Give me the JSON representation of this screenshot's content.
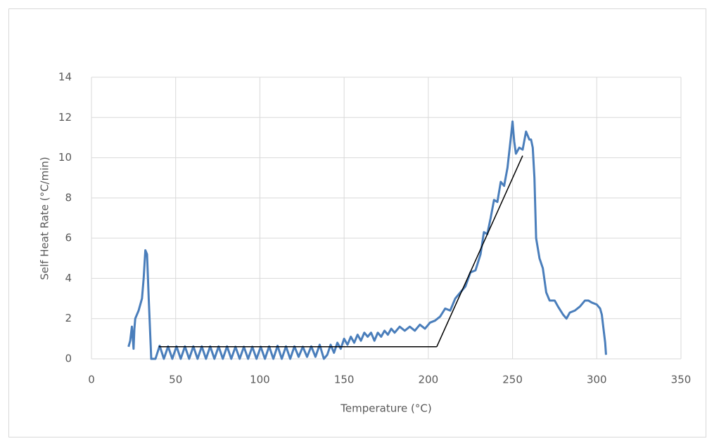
{
  "chart_data": {
    "type": "line",
    "x_label": "Temperature (°C)",
    "y_label": "Self Heat Rate (°C/min)",
    "xlim": [
      0,
      350
    ],
    "xticks": [
      0,
      50,
      100,
      150,
      200,
      250,
      300,
      350
    ],
    "ylim": [
      0,
      14
    ],
    "yticks": [
      0,
      2,
      4,
      6,
      8,
      10,
      12,
      14
    ],
    "grid": true,
    "series": [
      {
        "color": "#4a7ebb",
        "linewidth": 3,
        "x": [
          22,
          23,
          24,
          25,
          25.5,
          26,
          28,
          30,
          31,
          32,
          33,
          34,
          35,
          35.5,
          38,
          40.5,
          43,
          45.5,
          48,
          50.5,
          53,
          55.5,
          58,
          60.5,
          63,
          65.5,
          68,
          70.5,
          73,
          75.5,
          78,
          80.5,
          83,
          85.5,
          88,
          90.5,
          93,
          95.5,
          98,
          100.5,
          103,
          105.5,
          108,
          110.5,
          113,
          115.5,
          118,
          120.5,
          123,
          125.5,
          128,
          130.5,
          133,
          135.5,
          138,
          140,
          142,
          144,
          146,
          148,
          150,
          152,
          154,
          156,
          158,
          160,
          162,
          164,
          166,
          168,
          170,
          172,
          174,
          176,
          178,
          180,
          183,
          186,
          189,
          192,
          195,
          198,
          201,
          204,
          207,
          210,
          213,
          216,
          219,
          222,
          225,
          228,
          231,
          233,
          235,
          237,
          239,
          241,
          243,
          245,
          247,
          249,
          250,
          251,
          252,
          254,
          256,
          258,
          260,
          261,
          262,
          263,
          264,
          266,
          268,
          270,
          272,
          275,
          277,
          280,
          282,
          284,
          287,
          290,
          293,
          295,
          297,
          300,
          302,
          303,
          304,
          305,
          305.5
        ],
        "values": [
          0.6,
          0.9,
          1.6,
          0.5,
          1.5,
          2.0,
          2.4,
          3.0,
          4.0,
          5.4,
          5.2,
          3.0,
          1.0,
          0,
          0,
          0.65,
          0,
          0.62,
          0,
          0.62,
          0,
          0.62,
          0,
          0.62,
          0,
          0.62,
          0,
          0.62,
          0,
          0.62,
          0,
          0.62,
          0,
          0.6,
          0,
          0.6,
          0,
          0.6,
          0,
          0.6,
          0,
          0.62,
          0,
          0.65,
          0,
          0.62,
          0,
          0.62,
          0.1,
          0.6,
          0.1,
          0.62,
          0.1,
          0.7,
          0,
          0.2,
          0.7,
          0.3,
          0.8,
          0.5,
          1.0,
          0.7,
          1.1,
          0.8,
          1.2,
          0.9,
          1.3,
          1.1,
          1.3,
          0.9,
          1.3,
          1.1,
          1.4,
          1.2,
          1.5,
          1.3,
          1.6,
          1.4,
          1.6,
          1.4,
          1.7,
          1.5,
          1.8,
          1.9,
          2.1,
          2.5,
          2.4,
          3.0,
          3.3,
          3.6,
          4.3,
          4.4,
          5.2,
          6.3,
          6.2,
          7.0,
          7.9,
          7.8,
          8.8,
          8.6,
          9.5,
          11.0,
          11.8,
          10.8,
          10.2,
          10.5,
          10.4,
          11.3,
          10.9,
          10.9,
          10.5,
          9.0,
          6.0,
          5.0,
          4.5,
          3.3,
          2.9,
          2.9,
          2.6,
          2.2,
          2.0,
          2.3,
          2.4,
          2.6,
          2.9,
          2.9,
          2.8,
          2.7,
          2.5,
          2.2,
          1.5,
          0.8,
          0.2
        ]
      },
      {
        "color": "#000000",
        "linewidth": 1.5,
        "x": [
          40,
          205
        ],
        "values": [
          0.6,
          0.6
        ]
      },
      {
        "color": "#000000",
        "linewidth": 1.5,
        "x": [
          205,
          256
        ],
        "values": [
          0.6,
          10.1
        ]
      }
    ]
  }
}
